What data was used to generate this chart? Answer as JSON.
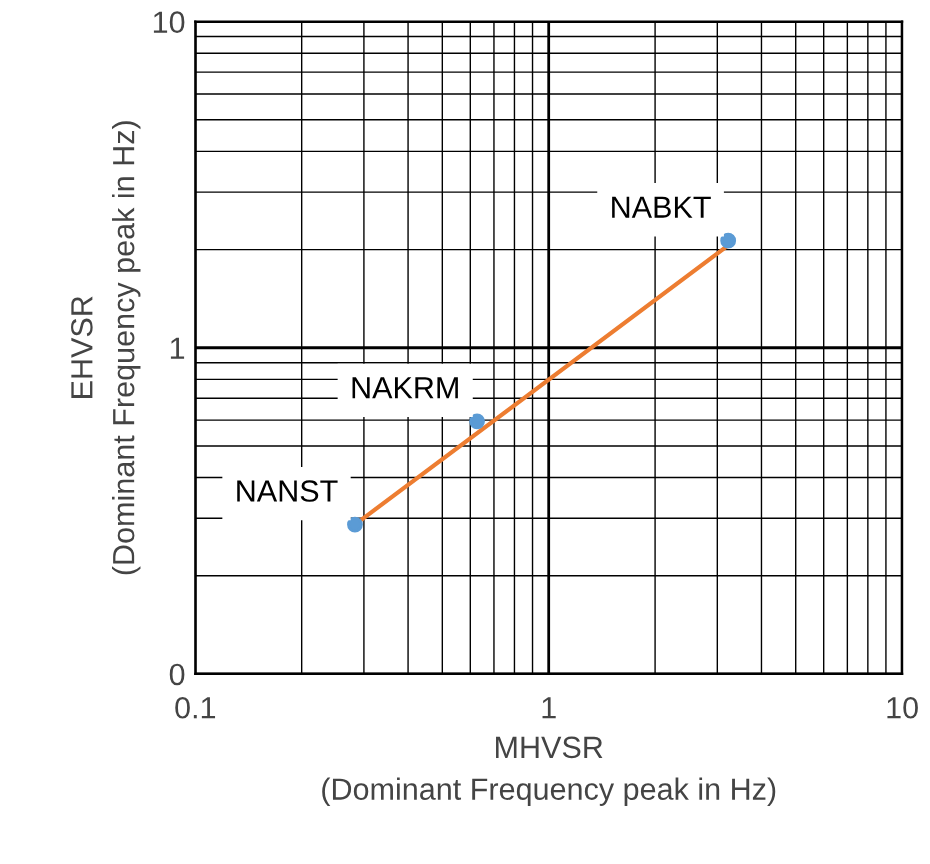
{
  "chart_data": {
    "type": "scatter",
    "xlabel": "MHVSR\n(Dominant Frequency peak in Hz)",
    "ylabel": "EHVSR\n(Dominant Frequency peak in Hz)",
    "log": "xy",
    "grid": true,
    "marker": "circle",
    "series": [
      {
        "color": "#5b9bd5",
        "x": [
          0.283,
          0.627,
          3.22
        ],
        "values": [
          0.287,
          0.595,
          2.13
        ]
      },
      {
        "type": "line",
        "marker": "none",
        "color": "#ed7d31",
        "x": [
          0.283,
          3.2
        ],
        "values": [
          0.287,
          2.05
        ]
      }
    ],
    "annotations": [
      {
        "text": "NANST",
        "x": 0.283,
        "y": 0.287
      },
      {
        "text": "NAKRM",
        "x": 0.627,
        "y": 0.595
      },
      {
        "text": "NABKT",
        "x": 3.22,
        "y": 2.13
      }
    ],
    "xlim": [
      0.1,
      10
    ],
    "ylim": [
      0.1,
      10
    ],
    "xticks": [
      0.1,
      1,
      10
    ],
    "yticks": [
      {
        "value": 0.1,
        "label": "0"
      },
      1,
      10
    ]
  }
}
